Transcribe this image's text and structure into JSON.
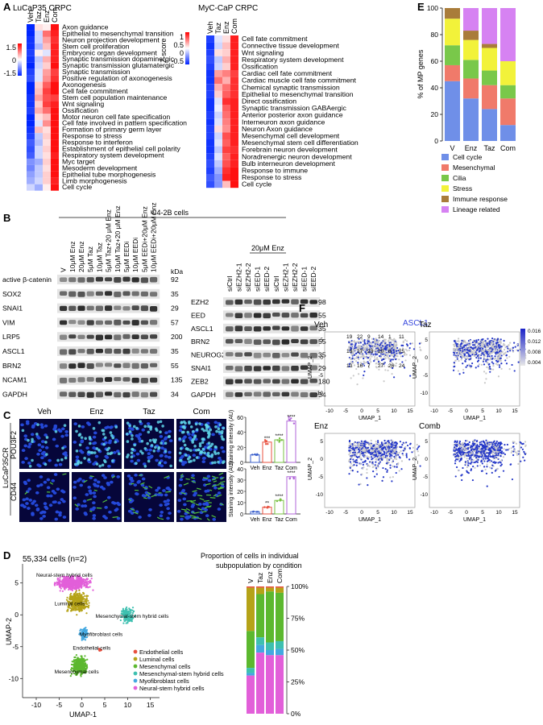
{
  "panelA": {
    "letter": "A",
    "left": {
      "title": "LuCaP35 CRPC",
      "cols": [
        "Veh",
        "Taz",
        "Enz",
        "Com"
      ],
      "scale_ticks": [
        "1.5",
        "0",
        "-1.5"
      ],
      "scale_label": "Z score",
      "rows": [
        "Axon guidance",
        "Epithelial to mesenchymal transition",
        "Neuron projection development",
        "Stem cell proliferation",
        "Embryonic organ development",
        "Synaptic transmission dopaminergic",
        "Synaptic transmission glutamatergic",
        "Synaptic transmission",
        "Positive regulation of axonogenesis",
        "Axonogenesis",
        "Cell fate commitment",
        "Stem cell population maintenance",
        "Wnt signaling",
        "Ossification",
        "Motor neuron cell fate specification",
        "Cell fate involved in pattern specification",
        "Formation of primary germ layer",
        "Response to stress",
        "Response to interferon",
        "Establishment of epithelial cell polarity",
        "Respiratory system development",
        "Myc target",
        "Mesoderm development",
        "Epithelial tube morphogenesis",
        "Limb morphogenesis",
        "Cell cycle"
      ],
      "values": [
        [
          -1.6,
          0.2,
          0.1,
          1.5
        ],
        [
          -1.6,
          -0.3,
          0.9,
          1.4
        ],
        [
          -1.5,
          -0.3,
          0.6,
          1.3
        ],
        [
          -1.5,
          -0.5,
          0.4,
          1.4
        ],
        [
          -1.4,
          0.1,
          -0.2,
          1.4
        ],
        [
          -1.5,
          -0.4,
          0.5,
          1.4
        ],
        [
          -1.6,
          -0.3,
          0.3,
          1.5
        ],
        [
          -1.4,
          -0.2,
          0.6,
          1.2
        ],
        [
          -1.3,
          -0.2,
          0.7,
          1.3
        ],
        [
          -1.6,
          0.3,
          1.0,
          1.5
        ],
        [
          -1.6,
          0.4,
          1.2,
          1.5
        ],
        [
          -1.5,
          0.6,
          1.1,
          1.2
        ],
        [
          -1.5,
          0.3,
          1.2,
          1.4
        ],
        [
          -1.4,
          0.5,
          0.9,
          1.5
        ],
        [
          -1.6,
          0.2,
          0.4,
          1.5
        ],
        [
          -1.6,
          -0.2,
          0.7,
          1.5
        ],
        [
          -1.5,
          0.4,
          0.2,
          1.5
        ],
        [
          -1.4,
          -0.4,
          0.3,
          1.5
        ],
        [
          -1.2,
          -0.5,
          0.2,
          1.5
        ],
        [
          -1.3,
          -0.3,
          0.3,
          1.5
        ],
        [
          -1.2,
          -0.3,
          0.2,
          1.4
        ],
        [
          -0.8,
          -0.6,
          0.3,
          1.5
        ],
        [
          -0.9,
          -0.4,
          0.2,
          1.5
        ],
        [
          -0.7,
          -0.4,
          0.3,
          1.5
        ],
        [
          -0.6,
          -0.3,
          0.3,
          1.4
        ],
        [
          -0.3,
          -0.6,
          0.1,
          1.5
        ]
      ]
    },
    "right": {
      "title": "MyC-CaP CRPC",
      "cols": [
        "Veh",
        "Taz",
        "Enz",
        "Com"
      ],
      "scale_ticks": [
        "1",
        "0.5",
        "0",
        "-0.5"
      ],
      "scale_label": "Z-score",
      "rows": [
        "Cell fate commitment",
        "Connective tissue development",
        "Wnt signaling",
        "Respiratory system development",
        "Ossification",
        "Cardiac cell fate commitment",
        "Cardiac muscle  cell fate commitment",
        "Chemical synaptic transmission",
        "Epithelial to mesenchymal transition",
        "Direct ossification",
        "Synaptic transmission GABAergic",
        "Anterior posterior axon guidance",
        "Interneuron axon guidance",
        "Neuron Axon guidance",
        "Mesenchymal cell development",
        "Mesenchymal stem cell differentiation",
        "Forebrain neuron development",
        "Noradrenergic neuron development",
        "Bulb interneuron development",
        "Response to immune",
        "Response to stress",
        "Cell cycle"
      ],
      "values": [
        [
          -1.4,
          -0.2,
          0.2,
          1.4
        ],
        [
          -1.5,
          -0.3,
          0.4,
          1.4
        ],
        [
          -1.4,
          0.2,
          0.3,
          1.4
        ],
        [
          -1.3,
          -0.4,
          0.5,
          1.4
        ],
        [
          -1.4,
          -0.3,
          0.3,
          1.4
        ],
        [
          -1.5,
          0.6,
          0.8,
          1.2
        ],
        [
          -1.5,
          0.9,
          0.5,
          1.3
        ],
        [
          -1.4,
          0.5,
          0.9,
          1.3
        ],
        [
          -1.4,
          0.3,
          1.0,
          1.3
        ],
        [
          -1.5,
          -0.2,
          1.3,
          1.4
        ],
        [
          -1.5,
          -0.1,
          1.0,
          1.4
        ],
        [
          -1.4,
          -0.3,
          0.9,
          1.4
        ],
        [
          -1.5,
          -0.2,
          0.8,
          1.4
        ],
        [
          -1.4,
          0.2,
          0.7,
          1.4
        ],
        [
          -1.4,
          -0.3,
          1.1,
          1.4
        ],
        [
          -1.5,
          -0.2,
          1.0,
          1.4
        ],
        [
          -1.5,
          -0.4,
          1.2,
          1.3
        ],
        [
          -1.4,
          -0.2,
          1.0,
          1.4
        ],
        [
          -1.3,
          -0.4,
          1.1,
          1.4
        ],
        [
          -1.4,
          -0.6,
          1.3,
          1.5
        ],
        [
          -1.2,
          -0.8,
          1.4,
          1.5
        ],
        [
          -1.3,
          -0.8,
          0.4,
          1.5
        ]
      ]
    }
  },
  "panelB": {
    "letter": "B",
    "cell_line": "C4-2B cells",
    "enz_label": "20μM Enz",
    "kda": "kDa",
    "left_lanes": [
      "V",
      "10μM Enz",
      "20μM Enz",
      "5μM Taz",
      "10μM Taz",
      "5μM Taz+20 μM Enz",
      "10μM Taz+20 μM Enz",
      "5μM EEDi",
      "10μM EEDi",
      "5μM EEDi+20μM Enz",
      "10μM EEDi+20μM Enz"
    ],
    "left_bands": [
      {
        "name": "active β-catenin",
        "kda": "92"
      },
      {
        "name": "SOX2",
        "kda": "35"
      },
      {
        "name": "SNAI1",
        "kda": "29"
      },
      {
        "name": "VIM",
        "kda": "57"
      },
      {
        "name": "LRP5",
        "kda": "200"
      },
      {
        "name": "ASCL1",
        "kda": "35"
      },
      {
        "name": "BRN2",
        "kda": "55"
      },
      {
        "name": "NCAM1",
        "kda": "135"
      },
      {
        "name": "GAPDH",
        "kda": "34"
      }
    ],
    "right_lanes": [
      "siCtrl",
      "siEZH2-1",
      "siEZH2-2",
      "siEED-1",
      "siEED-2",
      "siCtrl",
      "siEZH2-1",
      "siEZH2-2",
      "siEED-1",
      "siEED-2"
    ],
    "right_bands": [
      {
        "name": "EZH2",
        "kda": "98"
      },
      {
        "name": "EED",
        "kda": "55"
      },
      {
        "name": "ASCL1",
        "kda": "35"
      },
      {
        "name": "BRN2",
        "kda": "55"
      },
      {
        "name": "NEUROG2",
        "kda": "35"
      },
      {
        "name": "SNAI1",
        "kda": "29"
      },
      {
        "name": "ZEB2",
        "kda": "180"
      },
      {
        "name": "GAPDH",
        "kda": "34"
      }
    ]
  },
  "panelC": {
    "letter": "C",
    "conditions": [
      "Veh",
      "Enz",
      "Taz",
      "Com"
    ],
    "sample": "LuCaP35CR",
    "markers": [
      "POU3F2",
      "CD44"
    ],
    "bar_charts": [
      {
        "ylabel": "Staining intensity (AU)",
        "categories": [
          "Veh",
          "Enz",
          "Taz",
          "Com"
        ],
        "values": [
          10,
          27,
          30,
          55
        ],
        "ylim": [
          0,
          60
        ],
        "yticks": [
          "0",
          "20",
          "40",
          "60"
        ],
        "stars": [
          "",
          "***",
          "****",
          "****"
        ],
        "colors": [
          "#3a5fcd",
          "#e8503f",
          "#7ac143",
          "#b066d9"
        ]
      },
      {
        "ylabel": "Staining intensity (AU)",
        "categories": [
          "Veh",
          "Enz",
          "Taz",
          "Com"
        ],
        "values": [
          2,
          6,
          12,
          33
        ],
        "ylim": [
          0,
          40
        ],
        "yticks": [
          "0",
          "10",
          "20",
          "30",
          "40"
        ],
        "stars": [
          "",
          "**",
          "****",
          "****"
        ],
        "colors": [
          "#3a5fcd",
          "#e8503f",
          "#7ac143",
          "#b066d9"
        ]
      }
    ]
  },
  "panelD": {
    "letter": "D",
    "cells_label": "55,334 cells (n=2)",
    "xlabel": "UMAP-1",
    "ylabel": "UMAP-2",
    "xticks": [
      "-10",
      "-5",
      "0",
      "5",
      "10",
      "15"
    ],
    "yticks": [
      "5",
      "0",
      "-5",
      "-10"
    ],
    "cluster_labels": [
      "Neural-stem hybrid cells",
      "Luminal cells",
      "Mesenchymal-stem hybrid cells",
      "Myofibroblast cells",
      "Endothelial cells",
      "Mesenchymal cells"
    ],
    "legend": [
      {
        "label": "Endothelial cells",
        "color": "#e8503f"
      },
      {
        "label": "Luminal cells",
        "color": "#b5a318"
      },
      {
        "label": "Mesenchymal cells",
        "color": "#5cb82f"
      },
      {
        "label": "Mesenchymal-stem hybrid cells",
        "color": "#3ec0b0"
      },
      {
        "label": "Myofibroblast cells",
        "color": "#43a8e0"
      },
      {
        "label": "Neural-stem hybrid cells",
        "color": "#e25fd9"
      }
    ],
    "prop_title_1": "Proportion of cells in individual",
    "prop_title_2": "subpopulation by condition"
  },
  "chart_data": [
    {
      "type": "bar",
      "subtype": "stacked-100",
      "categories": [
        "V",
        "Taz",
        "Enz",
        "Com"
      ],
      "series": [
        {
          "name": "Endothelial cells",
          "color": "#e8503f",
          "values": [
            1,
            1,
            1,
            1
          ]
        },
        {
          "name": "Luminal cells",
          "color": "#b5a318",
          "values": [
            34,
            5,
            3,
            4
          ]
        },
        {
          "name": "Mesenchymal cells",
          "color": "#5cb82f",
          "values": [
            29,
            34,
            40,
            38
          ]
        },
        {
          "name": "Mesenchymal-stem hybrid cells",
          "color": "#3ec0b0",
          "values": [
            4,
            6,
            6,
            6
          ]
        },
        {
          "name": "Myofibroblast cells",
          "color": "#43a8e0",
          "values": [
            2,
            6,
            4,
            5
          ]
        },
        {
          "name": "Neural-stem hybrid cells",
          "color": "#e25fd9",
          "values": [
            30,
            48,
            46,
            46
          ]
        }
      ],
      "yticks": [
        "0%",
        "25%",
        "50%",
        "75%",
        "100%"
      ],
      "ylim": [
        0,
        100
      ]
    },
    {
      "type": "bar",
      "subtype": "stacked-100",
      "categories": [
        "V",
        "Enz",
        "Taz",
        "Com"
      ],
      "ylabel": "% of MP genes",
      "yticks": [
        "0",
        "20",
        "40",
        "60",
        "80",
        "100"
      ],
      "ylim": [
        0,
        100
      ],
      "series": [
        {
          "name": "Cell cycle",
          "color": "#6f8fe8",
          "values": [
            45,
            32,
            24,
            12
          ]
        },
        {
          "name": "Mesenchymal",
          "color": "#f07a6a",
          "values": [
            12,
            15,
            18,
            20
          ]
        },
        {
          "name": "Cilia",
          "color": "#79c84a",
          "values": [
            15,
            14,
            11,
            10
          ]
        },
        {
          "name": "Stress",
          "color": "#f2f23a",
          "values": [
            20,
            15,
            17,
            18
          ]
        },
        {
          "name": "Immune response",
          "color": "#a97c3a",
          "values": [
            8,
            7,
            3,
            0
          ]
        },
        {
          "name": "Lineage related",
          "color": "#d682f2",
          "values": [
            0,
            17,
            27,
            40
          ]
        }
      ]
    }
  ],
  "panelE": {
    "letter": "E",
    "legend": [
      "Cell cycle",
      "Mesenchymal",
      "Cilia",
      "Stress",
      "Immune response",
      "Lineage related"
    ]
  },
  "panelF": {
    "letter": "F",
    "gene": "ASCL1",
    "plots": [
      "Veh",
      "Taz",
      "Enz",
      "Comb"
    ],
    "xlabel": "UMAP_1",
    "ylabel": "UMAP_2",
    "xticks": [
      "-10",
      "-5",
      "0",
      "5",
      "10",
      "15"
    ],
    "yticks": [
      "5",
      "0",
      "-5",
      "-10"
    ],
    "scale_ticks": [
      "0.016",
      "0.012",
      "0.008",
      "0.004"
    ],
    "veh_clusters": [
      "19",
      "22",
      "9",
      "14",
      "1",
      "11",
      "13",
      "17",
      "23",
      "20",
      "6",
      "25",
      "10",
      "16",
      "7",
      "27",
      "26",
      "24"
    ]
  }
}
